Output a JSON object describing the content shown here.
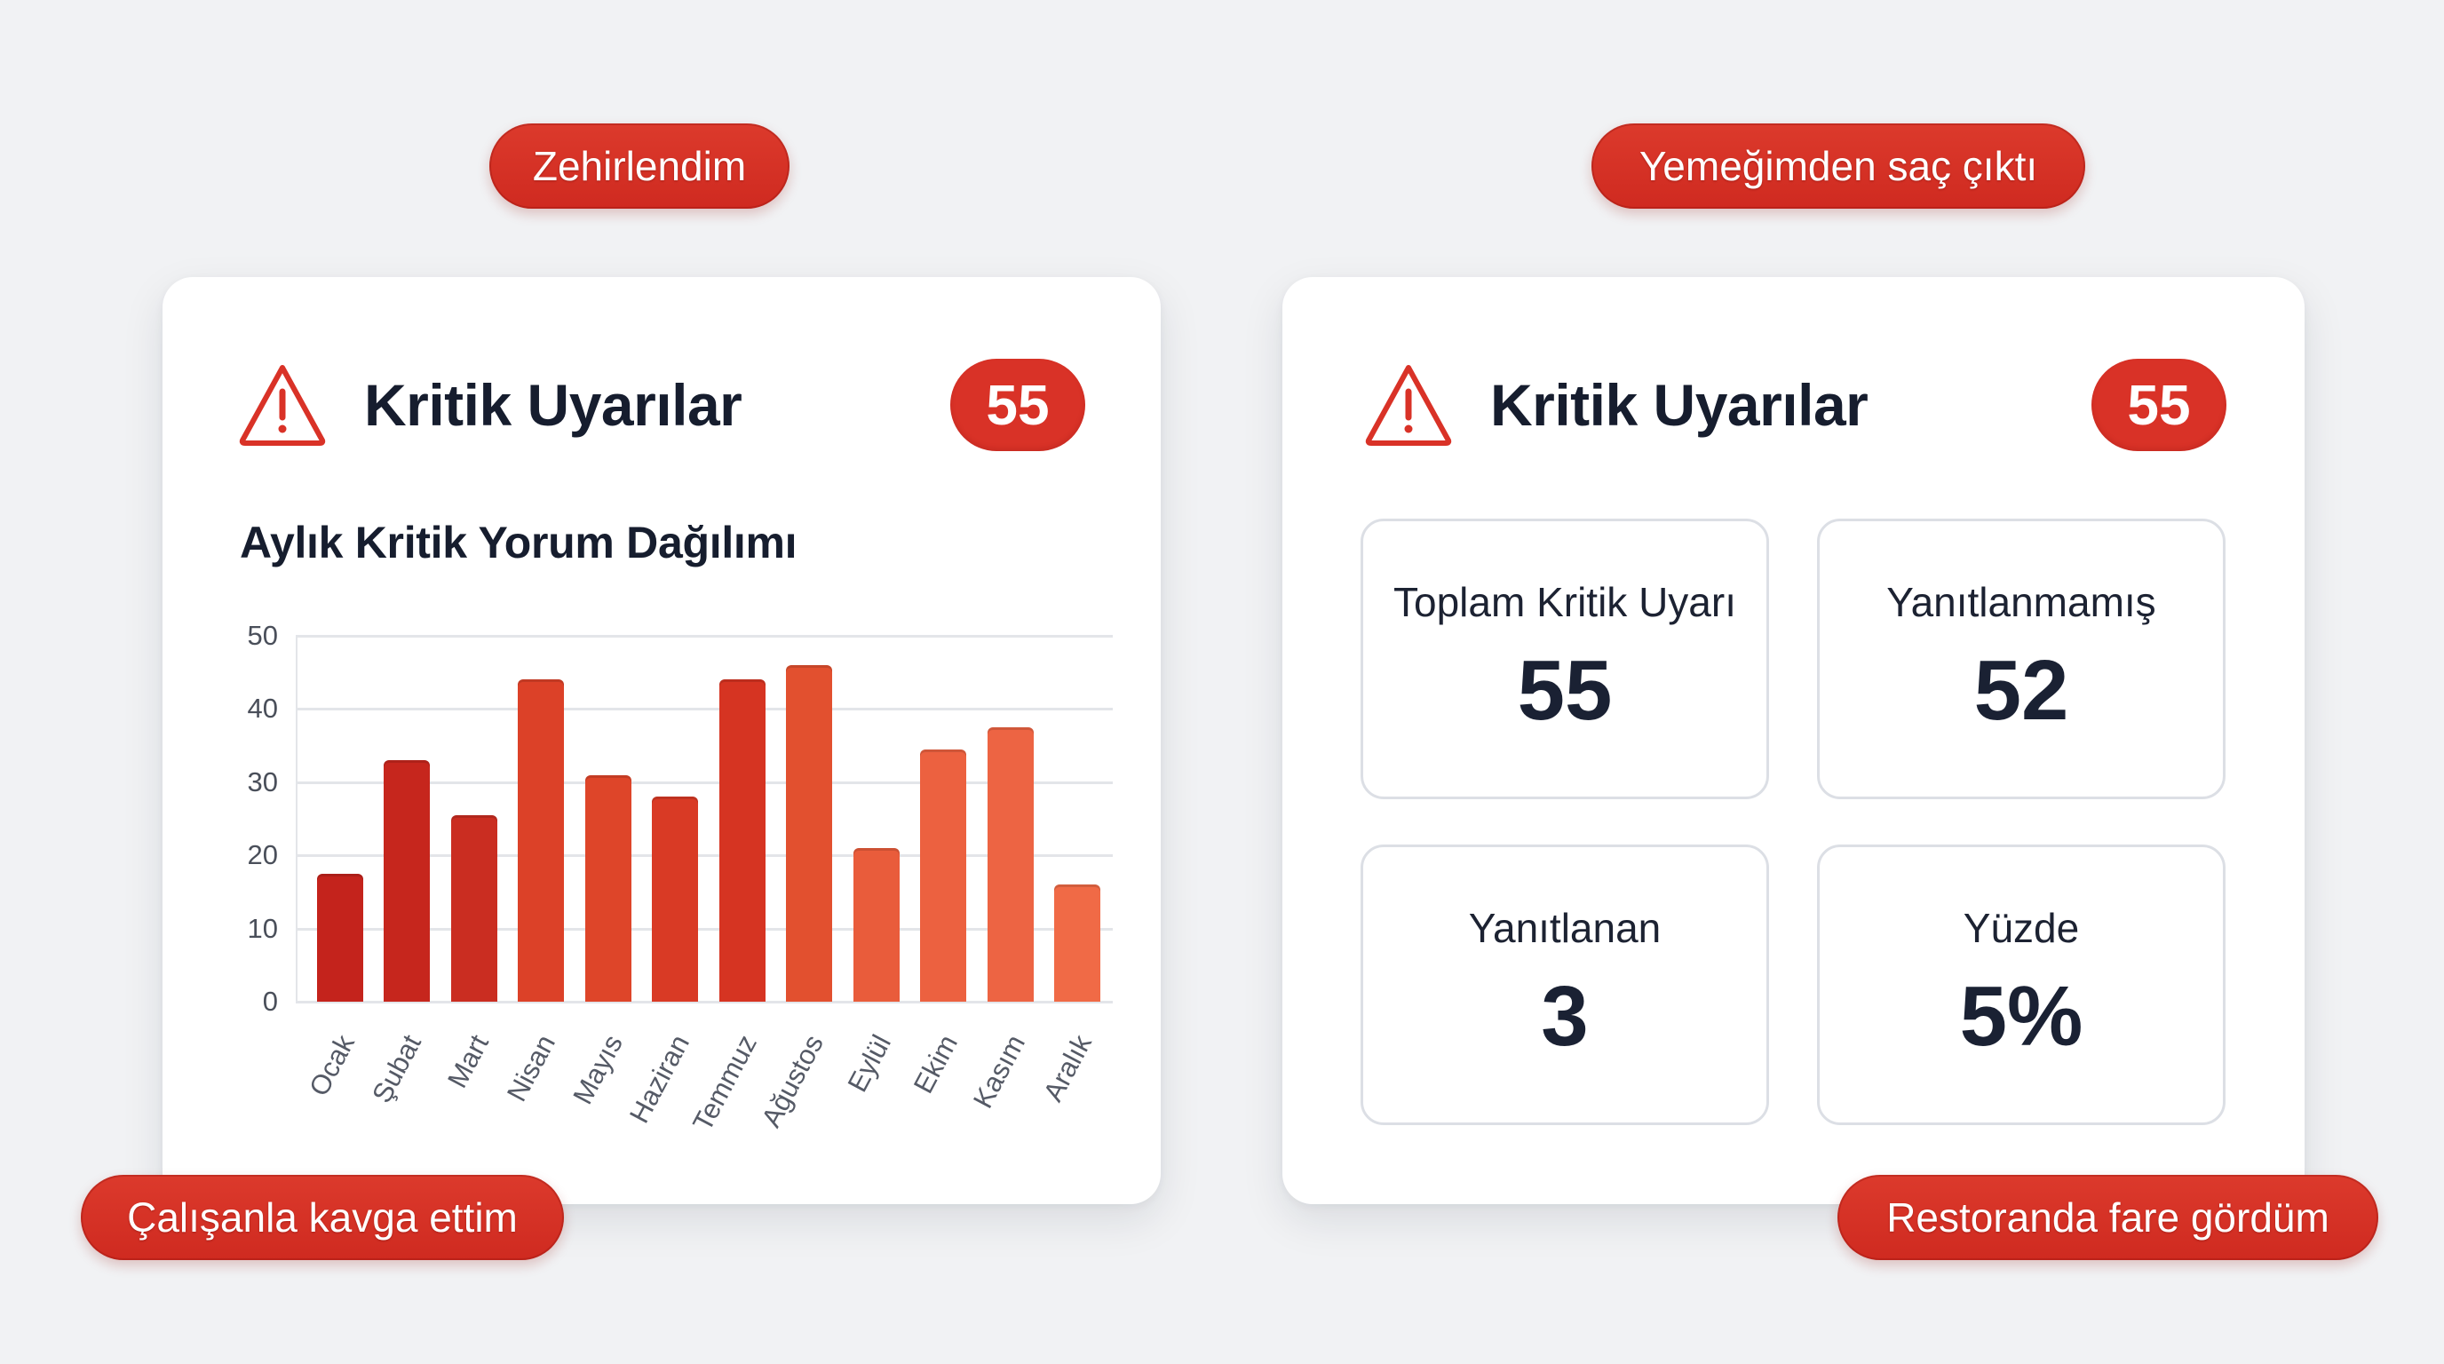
{
  "pills": {
    "top_left": "Zehirlendim",
    "top_right": "Yemeğimden saç çıktı",
    "bottom_left": "Çalışanla kavga ettim",
    "bottom_right": "Restoranda fare gördüm"
  },
  "left_card": {
    "title": "Kritik Uyarılar",
    "badge": "55",
    "icon": "warning-triangle-icon",
    "chart_title": "Aylık Kritik Yorum Dağılımı"
  },
  "right_card": {
    "title": "Kritik Uyarılar",
    "badge": "55",
    "icon": "warning-triangle-icon",
    "stats": [
      {
        "label": "Toplam Kritik Uyarı",
        "value": "55"
      },
      {
        "label": "Yanıtlanmamış",
        "value": "52"
      },
      {
        "label": "Yanıtlanan",
        "value": "3"
      },
      {
        "label": "Yüzde",
        "value": "5%"
      }
    ]
  },
  "colors": {
    "accent": "#d93227",
    "background": "#f1f2f4",
    "card": "#ffffff",
    "text": "#161d2e"
  },
  "chart_data": {
    "type": "bar",
    "title": "Aylık Kritik Yorum Dağılımı",
    "xlabel": "",
    "ylabel": "",
    "categories": [
      "Ocak",
      "Şubat",
      "Mart",
      "Nisan",
      "Mayıs",
      "Haziran",
      "Temmuz",
      "Ağustos",
      "Eylül",
      "Ekim",
      "Kasım",
      "Aralık"
    ],
    "values": [
      17.5,
      33,
      25.5,
      44,
      31,
      28,
      44,
      46,
      21,
      34.5,
      37.5,
      16
    ],
    "yticks": [
      0,
      10,
      20,
      30,
      40,
      50
    ],
    "ylim": [
      0,
      50
    ],
    "grid": true,
    "legend": null,
    "bar_colors": [
      "#c4231c",
      "#c6261d",
      "#ca2d21",
      "#dc4128",
      "#de4529",
      "#d93a25",
      "#d63422",
      "#e2502f",
      "#e95c3b",
      "#ec6140",
      "#ed6443",
      "#f06a46"
    ]
  }
}
